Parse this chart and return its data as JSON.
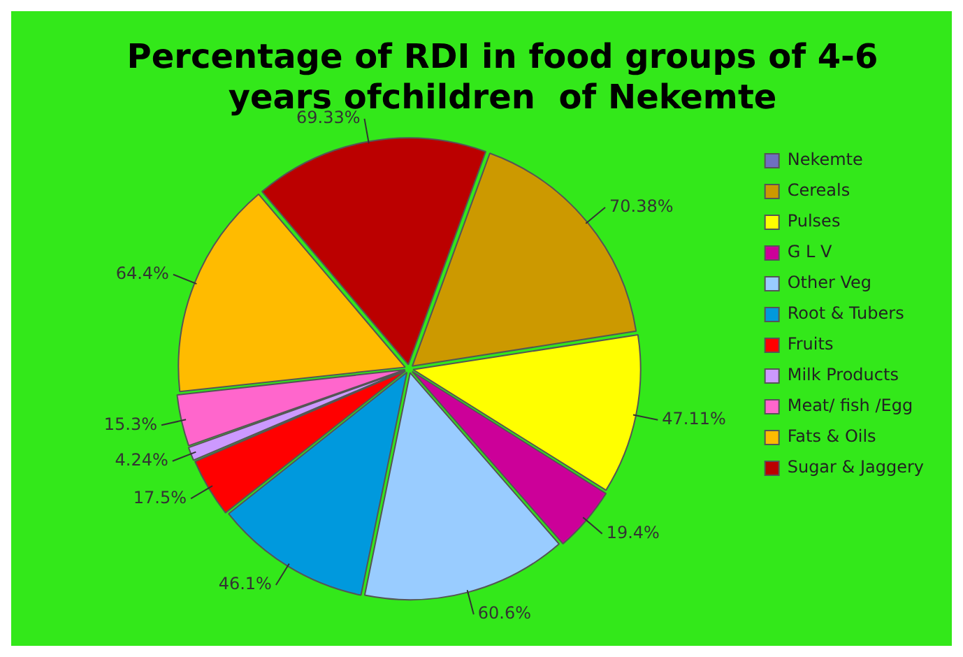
{
  "chart_data": {
    "type": "pie",
    "title": [
      "Percentage of RDI in food groups of 4-6",
      "years ofchildren  of Nekemte"
    ],
    "categories": [
      "Nekemte",
      "Cereals",
      "Pulses",
      "G L V",
      "Other Veg",
      "Root & Tubers",
      "Fruits",
      "Milk Products",
      "Meat/ fish /Egg",
      "Fats & Oils",
      "Sugar & Jaggery"
    ],
    "values": [
      null,
      70.38,
      47.11,
      19.4,
      60.6,
      46.1,
      17.5,
      4.24,
      15.3,
      64.4,
      69.33
    ],
    "value_labels": [
      null,
      "70.38%",
      "47.11%",
      "19.4%",
      "60.6%",
      "46.1%",
      "17.5%",
      "4.24%",
      "15.3%",
      "64.4%",
      "69.33%"
    ],
    "colors": [
      "#6f6fc0",
      "#cc9900",
      "#ffff00",
      "#cc0099",
      "#99ccff",
      "#0099dd",
      "#ff0000",
      "#cc99ff",
      "#ff66cc",
      "#ffbb00",
      "#bb0000"
    ],
    "legend": "right"
  }
}
